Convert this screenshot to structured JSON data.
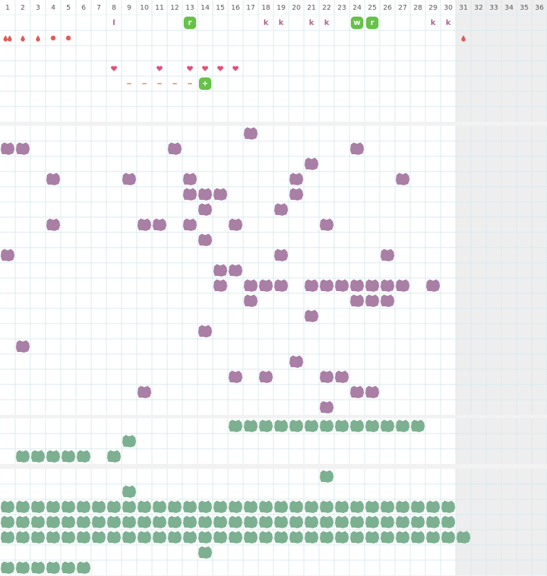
{
  "columns": [
    1,
    2,
    3,
    4,
    5,
    6,
    7,
    8,
    9,
    10,
    11,
    12,
    13,
    14,
    15,
    16,
    17,
    18,
    19,
    20,
    21,
    22,
    23,
    24,
    25,
    26,
    27,
    28,
    29,
    30,
    31,
    32,
    33,
    34,
    35,
    36
  ],
  "sections": [
    {
      "rows": [
        [
          {
            "mark": "letter",
            "days": [
              8,
              18,
              19,
              21,
              22,
              29,
              30
            ],
            "labels": [
              "l",
              "k",
              "k",
              "k",
              "k",
              "k",
              "k"
            ]
          },
          {
            "mark": "badge",
            "days": [
              13,
              24,
              25
            ],
            "labels": [
              "r",
              "w",
              "r"
            ]
          }
        ],
        [
          {
            "mark": "drop-pair",
            "days": [
              1
            ]
          },
          {
            "mark": "drop",
            "days": [
              2,
              3,
              31
            ]
          },
          {
            "mark": "dot",
            "days": [
              4,
              5
            ]
          }
        ],
        [],
        [
          {
            "mark": "heart",
            "days": [
              8,
              11,
              13,
              14,
              15,
              16
            ]
          }
        ],
        [
          {
            "mark": "dash",
            "days": [
              9,
              10,
              11,
              12,
              13
            ]
          },
          {
            "mark": "badge",
            "days": [
              14
            ],
            "labels": [
              "+"
            ]
          }
        ],
        [],
        []
      ]
    },
    {
      "rows": [
        [
          {
            "mark": "blob-purple",
            "days": [
              17
            ]
          }
        ],
        [
          {
            "mark": "blob-purple",
            "days": [
              1,
              2,
              12,
              24
            ]
          }
        ],
        [
          {
            "mark": "blob-purple",
            "days": [
              21
            ]
          }
        ],
        [
          {
            "mark": "blob-purple",
            "days": [
              4,
              9,
              13,
              20,
              27
            ]
          }
        ],
        [
          {
            "mark": "blob-purple",
            "days": [
              13,
              14,
              15,
              20
            ]
          }
        ],
        [
          {
            "mark": "blob-purple",
            "days": [
              14,
              19
            ]
          }
        ],
        [
          {
            "mark": "blob-purple",
            "days": [
              4,
              10,
              11,
              13,
              16,
              22
            ]
          }
        ],
        [
          {
            "mark": "blob-purple",
            "days": [
              14
            ]
          }
        ],
        [
          {
            "mark": "blob-purple",
            "days": [
              1,
              19,
              26
            ]
          }
        ],
        [
          {
            "mark": "blob-purple",
            "days": [
              15,
              16
            ]
          }
        ],
        [
          {
            "mark": "blob-purple",
            "days": [
              15,
              17,
              18,
              19,
              21,
              22,
              23,
              24,
              25,
              26,
              27,
              29
            ]
          }
        ],
        [
          {
            "mark": "blob-purple",
            "days": [
              17,
              24,
              25,
              26
            ]
          }
        ],
        [
          {
            "mark": "blob-purple",
            "days": [
              21
            ]
          }
        ],
        [
          {
            "mark": "blob-purple",
            "days": [
              14
            ]
          }
        ],
        [
          {
            "mark": "blob-purple",
            "days": [
              2
            ]
          }
        ],
        [
          {
            "mark": "blob-purple",
            "days": [
              20
            ]
          }
        ],
        [
          {
            "mark": "blob-purple",
            "days": [
              16,
              18,
              22,
              23
            ]
          }
        ],
        [
          {
            "mark": "blob-purple",
            "days": [
              10,
              24,
              25
            ]
          }
        ],
        [
          {
            "mark": "blob-purple",
            "days": [
              22
            ]
          }
        ]
      ]
    },
    {
      "rows": [
        [
          {
            "mark": "blob-green",
            "days": [
              16,
              17,
              18,
              19,
              20,
              21,
              22,
              23,
              24,
              25,
              26,
              27,
              28
            ]
          }
        ],
        [
          {
            "mark": "blob-green",
            "days": [
              9
            ]
          }
        ],
        [
          {
            "mark": "blob-green",
            "days": [
              2,
              3,
              4,
              5,
              6,
              8
            ]
          }
        ]
      ]
    },
    {
      "rows": [
        [
          {
            "mark": "blob-green",
            "days": [
              22
            ]
          }
        ],
        [
          {
            "mark": "blob-green",
            "days": [
              9
            ]
          }
        ],
        [
          {
            "mark": "blob-green",
            "days": [
              1,
              2,
              3,
              4,
              5,
              6,
              7,
              8,
              9,
              10,
              11,
              12,
              13,
              14,
              15,
              16,
              17,
              18,
              19,
              20,
              21,
              22,
              23,
              24,
              25,
              26,
              27,
              28,
              29,
              30
            ]
          }
        ],
        [
          {
            "mark": "blob-green",
            "days": [
              1,
              2,
              3,
              4,
              5,
              6,
              7,
              8,
              9,
              10,
              11,
              12,
              13,
              14,
              15,
              16,
              17,
              18,
              19,
              20,
              21,
              22,
              23,
              24,
              25,
              26,
              27,
              28,
              29,
              30
            ]
          }
        ],
        [
          {
            "mark": "blob-green",
            "days": [
              1,
              2,
              3,
              4,
              5,
              6,
              7,
              8,
              9,
              10,
              11,
              12,
              13,
              14,
              15,
              16,
              17,
              18,
              19,
              20,
              21,
              22,
              23,
              24,
              25,
              26,
              27,
              28,
              29,
              30,
              31
            ]
          }
        ],
        [
          {
            "mark": "blob-green",
            "days": [
              14
            ]
          }
        ],
        [
          {
            "mark": "blob-green",
            "days": [
              1,
              2,
              3,
              4,
              5,
              6
            ]
          }
        ]
      ]
    }
  ]
}
